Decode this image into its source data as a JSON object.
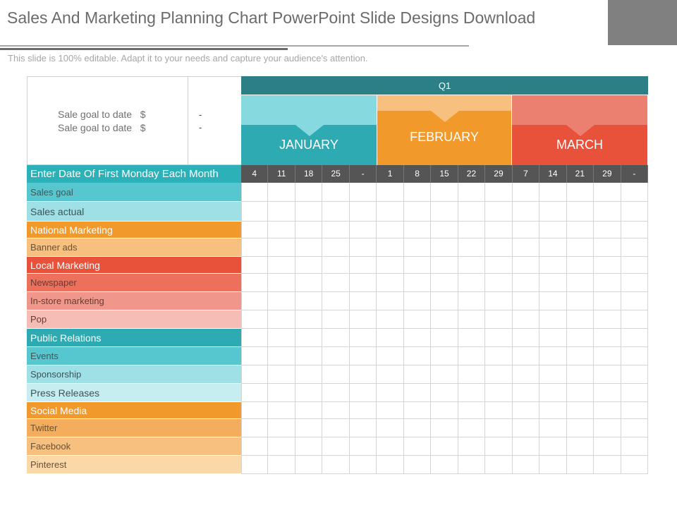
{
  "header": {
    "title": "Sales And Marketing Planning Chart PowerPoint Slide Designs Download",
    "subtitle": "This slide is 100% editable. Adapt it to your needs and capture your audience's attention."
  },
  "goal": {
    "line1": "Sale goal to date   $",
    "line2": "Sale goal to date   $",
    "dash1": "-",
    "dash2": "-"
  },
  "quarter": "Q1",
  "months": [
    {
      "name": "JANUARY",
      "color": "#2eaab2",
      "top_color": "#87d9e0"
    },
    {
      "name": "FEBRUARY",
      "color": "#f2992b",
      "top_color": "#f7c07f"
    },
    {
      "name": "MARCH",
      "color": "#e8513a",
      "top_color": "#ec8070"
    }
  ],
  "date_header_label": "Enter Date Of First Monday Each Month",
  "dates": [
    "4",
    "11",
    "18",
    "25",
    "-",
    "1",
    "8",
    "15",
    "22",
    "29",
    "7",
    "14",
    "21",
    "29",
    "-"
  ],
  "rows": [
    {
      "label": "Sales goal",
      "bg": "#56c7cf",
      "fg": "#3b5a5e"
    },
    {
      "label": "Sales actual",
      "bg": "#9ee0e6",
      "fg": "#3b5558"
    },
    {
      "label": "National Marketing",
      "bg": "#f2992b",
      "fg": "#ffffff"
    },
    {
      "label": "Banner ads",
      "bg": "#f7c07f",
      "fg": "#6b5233"
    },
    {
      "label": "Local Marketing",
      "bg": "#e8513a",
      "fg": "#ffffff"
    },
    {
      "label": "Newspaper",
      "bg": "#ec705c",
      "fg": "#6b3a31"
    },
    {
      "label": "In-store marketing",
      "bg": "#f1968a",
      "fg": "#6b3a31"
    },
    {
      "label": "Pop",
      "bg": "#f5bdb5",
      "fg": "#6b3a31"
    },
    {
      "label": "Public Relations",
      "bg": "#2eaab2",
      "fg": "#ffffff"
    },
    {
      "label": "Events",
      "bg": "#56c7cf",
      "fg": "#3b5a5e"
    },
    {
      "label": "Sponsorship",
      "bg": "#9ee0e6",
      "fg": "#3b5558"
    },
    {
      "label": "Press Releases",
      "bg": "#c6eef1",
      "fg": "#3b5558"
    },
    {
      "label": "Social Media",
      "bg": "#f2992b",
      "fg": "#ffffff"
    },
    {
      "label": "Twitter",
      "bg": "#f4ad5c",
      "fg": "#6b5233"
    },
    {
      "label": "Facebook",
      "bg": "#f7c07f",
      "fg": "#6b5233"
    },
    {
      "label": "Pinterest",
      "bg": "#fad8a8",
      "fg": "#6b5233"
    }
  ]
}
